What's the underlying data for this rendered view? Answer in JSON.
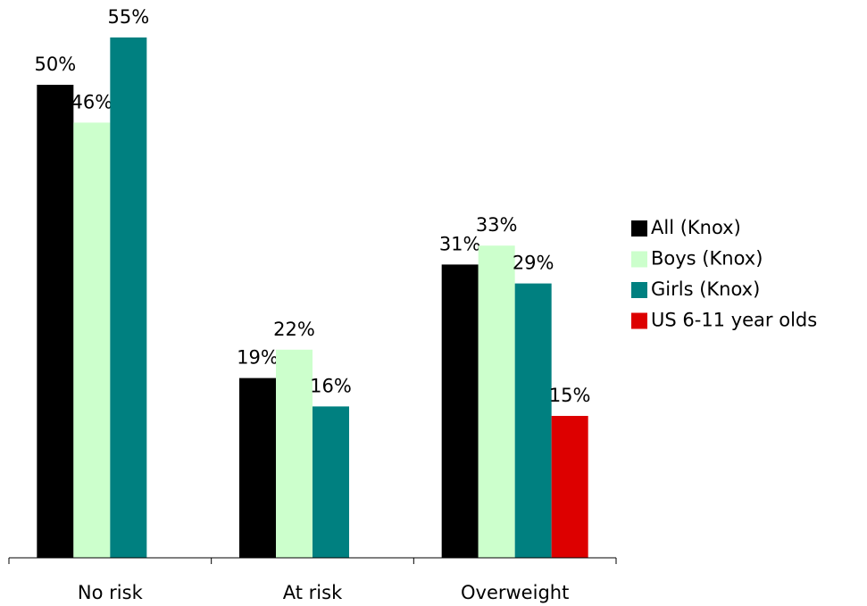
{
  "chart_data": {
    "type": "bar",
    "categories": [
      "No risk",
      "At risk",
      "Overweight"
    ],
    "series": [
      {
        "name": "All (Knox)",
        "color": "#000000",
        "values": [
          50,
          19,
          31
        ],
        "value_labels": [
          "50%",
          "19%",
          "31%"
        ]
      },
      {
        "name": "Boys (Knox)",
        "color": "#ccffcc",
        "values": [
          46,
          22,
          33
        ],
        "value_labels": [
          "46%",
          "22%",
          "33%"
        ]
      },
      {
        "name": "Girls (Knox)",
        "color": "#008080",
        "values": [
          55,
          16,
          29
        ],
        "value_labels": [
          "55%",
          "16%",
          "29%"
        ]
      },
      {
        "name": "US 6-11 year olds",
        "color": "#dd0000",
        "values": [
          null,
          null,
          15
        ],
        "value_labels": [
          null,
          null,
          "15%"
        ]
      }
    ],
    "ylim": [
      0,
      55
    ],
    "legend": "right"
  }
}
